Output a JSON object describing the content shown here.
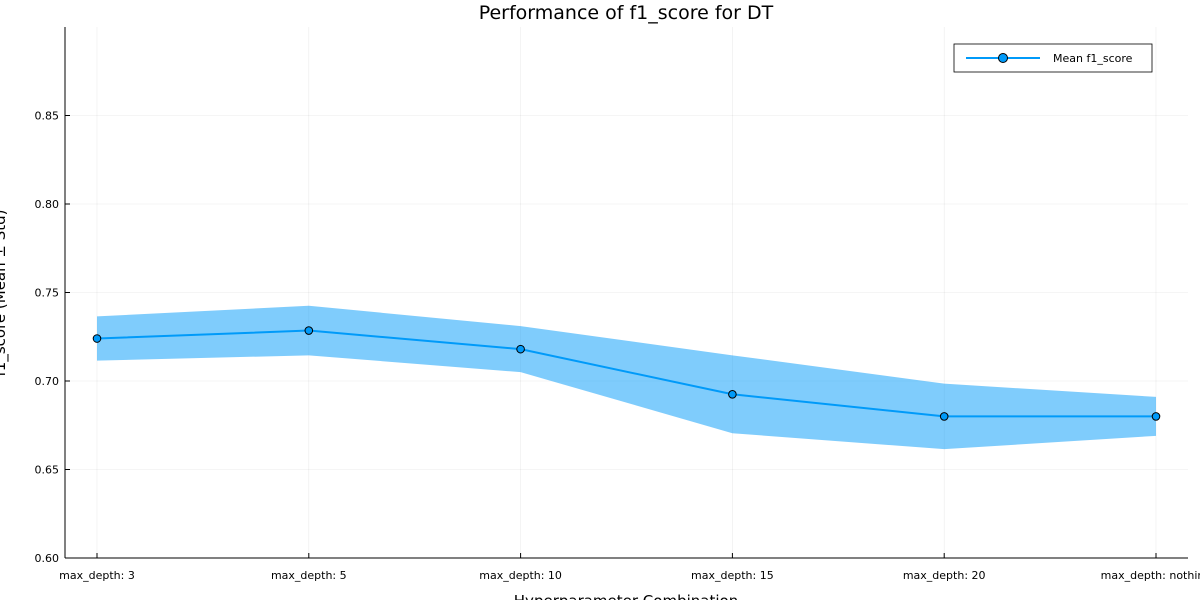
{
  "chart_data": {
    "type": "line",
    "title": "Performance of f1_score for DT",
    "xlabel": "Hyperparameter Combination",
    "ylabel": "f1_score (Mean ± Std)",
    "categories": [
      "max_depth: 3",
      "max_depth: 5",
      "max_depth: 10",
      "max_depth: 15",
      "max_depth: 20",
      "max_depth: nothing"
    ],
    "series": [
      {
        "name": "Mean f1_score",
        "values": [
          0.724,
          0.7285,
          0.718,
          0.6925,
          0.68,
          0.68
        ],
        "lower": [
          0.7115,
          0.7145,
          0.705,
          0.6705,
          0.6615,
          0.669
        ],
        "upper": [
          0.7365,
          0.7425,
          0.731,
          0.7145,
          0.6985,
          0.691
        ]
      }
    ],
    "ylim": [
      0.6,
      0.9
    ],
    "yticks": [
      "0.60",
      "0.65",
      "0.70",
      "0.75",
      "0.80",
      "0.85"
    ],
    "grid": true,
    "legend": "top-right",
    "colors": {
      "line": "#009af9",
      "band": "#009af9",
      "marker_stroke": "#000000"
    }
  }
}
